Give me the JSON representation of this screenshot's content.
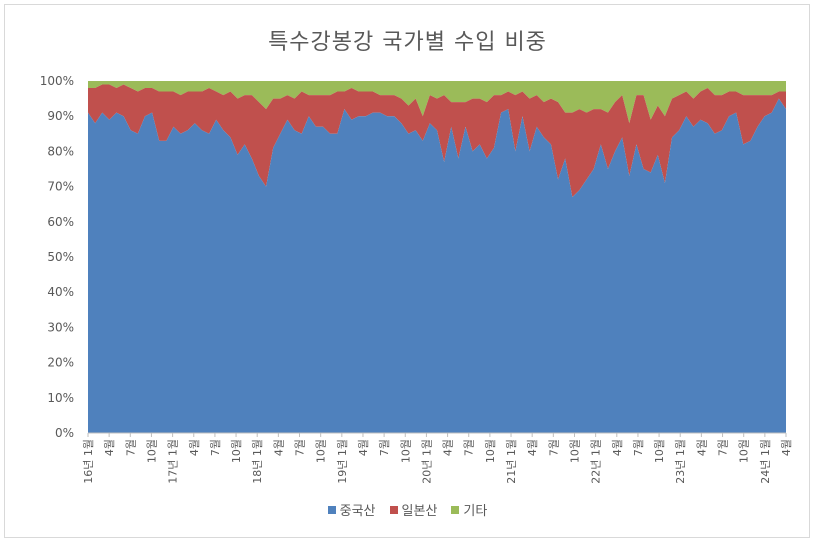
{
  "chart_data": {
    "type": "area",
    "stacked": "percent",
    "title": "특수강봉강 국가별 수입 비중",
    "ylim": [
      0,
      100
    ],
    "yticks": [
      "0%",
      "10%",
      "20%",
      "30%",
      "40%",
      "50%",
      "60%",
      "70%",
      "80%",
      "90%",
      "100%"
    ],
    "x_tick_labels": [
      "16년 1월",
      "4월",
      "7월",
      "10월",
      "17년 1월",
      "4월",
      "7월",
      "10월",
      "18년 1월",
      "4월",
      "7월",
      "10월",
      "19년 1월",
      "4월",
      "7월",
      "10월",
      "20년 1월",
      "4월",
      "7월",
      "10월",
      "21년 1월",
      "4월",
      "7월",
      "10월",
      "22년 1월",
      "4월",
      "7월",
      "10월",
      "23년 1월",
      "4월",
      "7월",
      "10월",
      "24년 1월",
      "4월"
    ],
    "series": [
      {
        "name": "중국산",
        "color": "#4f81bd",
        "values": [
          91,
          88,
          91,
          89,
          91,
          90,
          86,
          85,
          90,
          91,
          83,
          83,
          87,
          85,
          86,
          88,
          86,
          85,
          89,
          86,
          84,
          79,
          82,
          78,
          73,
          70,
          81,
          85,
          89,
          86,
          85,
          90,
          87,
          87,
          85,
          85,
          92,
          89,
          90,
          90,
          91,
          91,
          90,
          90,
          88,
          85,
          86,
          83,
          88,
          86,
          77,
          87,
          78,
          87,
          80,
          82,
          78,
          81,
          91,
          92,
          80,
          90,
          80,
          87,
          84,
          82,
          72,
          78,
          67,
          69,
          72,
          75,
          82,
          75,
          80,
          84,
          73,
          82,
          75,
          74,
          79,
          71,
          84,
          86,
          90,
          87,
          89,
          88,
          85,
          86,
          90,
          91,
          82,
          83,
          87,
          90,
          91,
          95,
          92
        ],
        "total_with": [
          98,
          98,
          99,
          99,
          98,
          99,
          98,
          97,
          98,
          98,
          97,
          97,
          97,
          96,
          97,
          97,
          97,
          98,
          97,
          96,
          97,
          95,
          96,
          96,
          94,
          92,
          95,
          95,
          96,
          95,
          97,
          96,
          96,
          96,
          96,
          97,
          97,
          98,
          97,
          97,
          97,
          96,
          96,
          96,
          95,
          93,
          95,
          90,
          96,
          95,
          96,
          94,
          94,
          94,
          95,
          95,
          94,
          96,
          96,
          97,
          96,
          97,
          95,
          96,
          94,
          95,
          94,
          91,
          91,
          92,
          91,
          92,
          92,
          91,
          94,
          96,
          88,
          96,
          96,
          89,
          93,
          90,
          95,
          96,
          97,
          95,
          97,
          98,
          96,
          96,
          97,
          97,
          96,
          96,
          96,
          96,
          96,
          97,
          97
        ],
        "note": "values = cumulative top of 중국산 band"
      },
      {
        "name": "일본산",
        "color": "#c0504d"
      },
      {
        "name": "기타",
        "color": "#9bbb59"
      }
    ]
  },
  "legend": {
    "items": [
      "중국산",
      "일본산",
      "기타"
    ]
  }
}
